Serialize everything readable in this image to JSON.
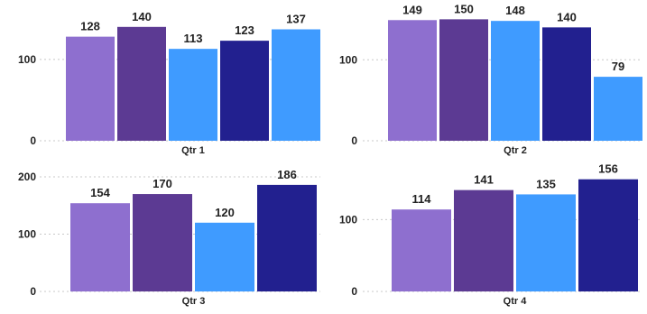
{
  "palette": [
    "#8E6FCF",
    "#5C3A93",
    "#3F9BFF",
    "#22208F"
  ],
  "chart_data": [
    {
      "type": "bar",
      "category": "Qtr 1",
      "values": [
        128,
        140,
        113,
        123,
        137
      ],
      "colors": [
        "#8E6FCF",
        "#5C3A93",
        "#3F9BFF",
        "#22208F",
        "#3F9BFF"
      ],
      "yticks": [
        0,
        100
      ],
      "ylim": [
        0,
        152
      ],
      "grid": true
    },
    {
      "type": "bar",
      "category": "Qtr 2",
      "values": [
        149,
        150,
        148,
        140,
        79
      ],
      "colors": [
        "#8E6FCF",
        "#5C3A93",
        "#3F9BFF",
        "#22208F",
        "#3F9BFF"
      ],
      "yticks": [
        0,
        100
      ],
      "ylim": [
        0,
        156
      ],
      "grid": true
    },
    {
      "type": "bar",
      "category": "Qtr 3",
      "values": [
        154,
        170,
        120,
        186
      ],
      "colors": [
        "#8E6FCF",
        "#5C3A93",
        "#3F9BFF",
        "#22208F"
      ],
      "yticks": [
        0,
        100,
        200
      ],
      "ylim": [
        0,
        200
      ],
      "grid": true
    },
    {
      "type": "bar",
      "category": "Qtr 4",
      "values": [
        114,
        141,
        135,
        156
      ],
      "colors": [
        "#8E6FCF",
        "#5C3A93",
        "#3F9BFF",
        "#22208F"
      ],
      "yticks": [
        0,
        100
      ],
      "ylim": [
        0,
        187
      ],
      "grid": true
    }
  ]
}
